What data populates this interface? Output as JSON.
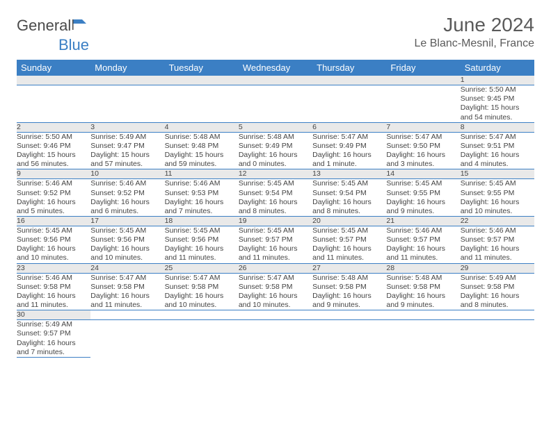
{
  "brand": {
    "part1": "General",
    "part2": "Blue"
  },
  "title": "June 2024",
  "location": "Le Blanc-Mesnil, France",
  "colors": {
    "header_bg": "#3b7fc4",
    "header_text": "#ffffff",
    "daynum_bg": "#e9e9e9",
    "border": "#3b7fc4",
    "text": "#444444",
    "title_text": "#5a5a5a"
  },
  "days": [
    "Sunday",
    "Monday",
    "Tuesday",
    "Wednesday",
    "Thursday",
    "Friday",
    "Saturday"
  ],
  "weeks": [
    [
      null,
      null,
      null,
      null,
      null,
      null,
      {
        "n": "1",
        "sr": "Sunrise: 5:50 AM",
        "ss": "Sunset: 9:45 PM",
        "dl1": "Daylight: 15 hours",
        "dl2": "and 54 minutes."
      }
    ],
    [
      {
        "n": "2",
        "sr": "Sunrise: 5:50 AM",
        "ss": "Sunset: 9:46 PM",
        "dl1": "Daylight: 15 hours",
        "dl2": "and 56 minutes."
      },
      {
        "n": "3",
        "sr": "Sunrise: 5:49 AM",
        "ss": "Sunset: 9:47 PM",
        "dl1": "Daylight: 15 hours",
        "dl2": "and 57 minutes."
      },
      {
        "n": "4",
        "sr": "Sunrise: 5:48 AM",
        "ss": "Sunset: 9:48 PM",
        "dl1": "Daylight: 15 hours",
        "dl2": "and 59 minutes."
      },
      {
        "n": "5",
        "sr": "Sunrise: 5:48 AM",
        "ss": "Sunset: 9:49 PM",
        "dl1": "Daylight: 16 hours",
        "dl2": "and 0 minutes."
      },
      {
        "n": "6",
        "sr": "Sunrise: 5:47 AM",
        "ss": "Sunset: 9:49 PM",
        "dl1": "Daylight: 16 hours",
        "dl2": "and 1 minute."
      },
      {
        "n": "7",
        "sr": "Sunrise: 5:47 AM",
        "ss": "Sunset: 9:50 PM",
        "dl1": "Daylight: 16 hours",
        "dl2": "and 3 minutes."
      },
      {
        "n": "8",
        "sr": "Sunrise: 5:47 AM",
        "ss": "Sunset: 9:51 PM",
        "dl1": "Daylight: 16 hours",
        "dl2": "and 4 minutes."
      }
    ],
    [
      {
        "n": "9",
        "sr": "Sunrise: 5:46 AM",
        "ss": "Sunset: 9:52 PM",
        "dl1": "Daylight: 16 hours",
        "dl2": "and 5 minutes."
      },
      {
        "n": "10",
        "sr": "Sunrise: 5:46 AM",
        "ss": "Sunset: 9:52 PM",
        "dl1": "Daylight: 16 hours",
        "dl2": "and 6 minutes."
      },
      {
        "n": "11",
        "sr": "Sunrise: 5:46 AM",
        "ss": "Sunset: 9:53 PM",
        "dl1": "Daylight: 16 hours",
        "dl2": "and 7 minutes."
      },
      {
        "n": "12",
        "sr": "Sunrise: 5:45 AM",
        "ss": "Sunset: 9:54 PM",
        "dl1": "Daylight: 16 hours",
        "dl2": "and 8 minutes."
      },
      {
        "n": "13",
        "sr": "Sunrise: 5:45 AM",
        "ss": "Sunset: 9:54 PM",
        "dl1": "Daylight: 16 hours",
        "dl2": "and 8 minutes."
      },
      {
        "n": "14",
        "sr": "Sunrise: 5:45 AM",
        "ss": "Sunset: 9:55 PM",
        "dl1": "Daylight: 16 hours",
        "dl2": "and 9 minutes."
      },
      {
        "n": "15",
        "sr": "Sunrise: 5:45 AM",
        "ss": "Sunset: 9:55 PM",
        "dl1": "Daylight: 16 hours",
        "dl2": "and 10 minutes."
      }
    ],
    [
      {
        "n": "16",
        "sr": "Sunrise: 5:45 AM",
        "ss": "Sunset: 9:56 PM",
        "dl1": "Daylight: 16 hours",
        "dl2": "and 10 minutes."
      },
      {
        "n": "17",
        "sr": "Sunrise: 5:45 AM",
        "ss": "Sunset: 9:56 PM",
        "dl1": "Daylight: 16 hours",
        "dl2": "and 10 minutes."
      },
      {
        "n": "18",
        "sr": "Sunrise: 5:45 AM",
        "ss": "Sunset: 9:56 PM",
        "dl1": "Daylight: 16 hours",
        "dl2": "and 11 minutes."
      },
      {
        "n": "19",
        "sr": "Sunrise: 5:45 AM",
        "ss": "Sunset: 9:57 PM",
        "dl1": "Daylight: 16 hours",
        "dl2": "and 11 minutes."
      },
      {
        "n": "20",
        "sr": "Sunrise: 5:45 AM",
        "ss": "Sunset: 9:57 PM",
        "dl1": "Daylight: 16 hours",
        "dl2": "and 11 minutes."
      },
      {
        "n": "21",
        "sr": "Sunrise: 5:46 AM",
        "ss": "Sunset: 9:57 PM",
        "dl1": "Daylight: 16 hours",
        "dl2": "and 11 minutes."
      },
      {
        "n": "22",
        "sr": "Sunrise: 5:46 AM",
        "ss": "Sunset: 9:57 PM",
        "dl1": "Daylight: 16 hours",
        "dl2": "and 11 minutes."
      }
    ],
    [
      {
        "n": "23",
        "sr": "Sunrise: 5:46 AM",
        "ss": "Sunset: 9:58 PM",
        "dl1": "Daylight: 16 hours",
        "dl2": "and 11 minutes."
      },
      {
        "n": "24",
        "sr": "Sunrise: 5:47 AM",
        "ss": "Sunset: 9:58 PM",
        "dl1": "Daylight: 16 hours",
        "dl2": "and 11 minutes."
      },
      {
        "n": "25",
        "sr": "Sunrise: 5:47 AM",
        "ss": "Sunset: 9:58 PM",
        "dl1": "Daylight: 16 hours",
        "dl2": "and 10 minutes."
      },
      {
        "n": "26",
        "sr": "Sunrise: 5:47 AM",
        "ss": "Sunset: 9:58 PM",
        "dl1": "Daylight: 16 hours",
        "dl2": "and 10 minutes."
      },
      {
        "n": "27",
        "sr": "Sunrise: 5:48 AM",
        "ss": "Sunset: 9:58 PM",
        "dl1": "Daylight: 16 hours",
        "dl2": "and 9 minutes."
      },
      {
        "n": "28",
        "sr": "Sunrise: 5:48 AM",
        "ss": "Sunset: 9:58 PM",
        "dl1": "Daylight: 16 hours",
        "dl2": "and 9 minutes."
      },
      {
        "n": "29",
        "sr": "Sunrise: 5:49 AM",
        "ss": "Sunset: 9:58 PM",
        "dl1": "Daylight: 16 hours",
        "dl2": "and 8 minutes."
      }
    ],
    [
      {
        "n": "30",
        "sr": "Sunrise: 5:49 AM",
        "ss": "Sunset: 9:57 PM",
        "dl1": "Daylight: 16 hours",
        "dl2": "and 7 minutes."
      },
      null,
      null,
      null,
      null,
      null,
      null
    ]
  ]
}
